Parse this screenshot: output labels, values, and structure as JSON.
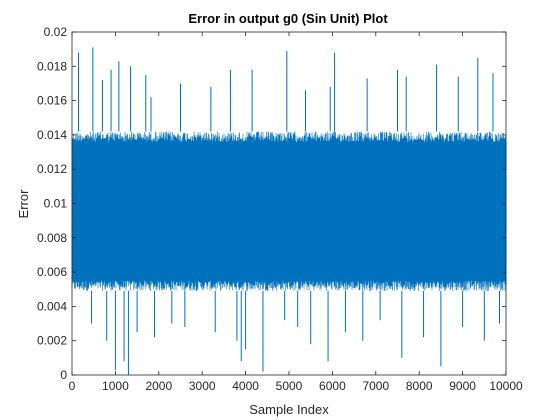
{
  "chart_data": {
    "type": "line",
    "title": "Error in output g0 (Sin Unit) Plot",
    "xlabel": "Sample Index",
    "ylabel": "Error",
    "xlim": [
      0,
      10000
    ],
    "ylim": [
      0,
      0.02
    ],
    "x_ticks": [
      0,
      1000,
      2000,
      3000,
      4000,
      5000,
      6000,
      7000,
      8000,
      9000,
      10000
    ],
    "x_tick_labels": [
      "0",
      "1000",
      "2000",
      "3000",
      "4000",
      "5000",
      "6000",
      "7000",
      "8000",
      "9000",
      "10000"
    ],
    "y_ticks": [
      0,
      0.002,
      0.004,
      0.006,
      0.008,
      0.01,
      0.012,
      0.014,
      0.016,
      0.018,
      0.02
    ],
    "y_tick_labels": [
      "0",
      "0.002",
      "0.004",
      "0.006",
      "0.008",
      "0.01",
      "0.012",
      "0.014",
      "0.016",
      "0.018",
      "0.02"
    ],
    "grid": false,
    "line_color": "#0072BD",
    "series": [
      {
        "band_upper": 0.0142,
        "band_lower": 0.0049,
        "upward_spikes": [
          {
            "x": 150,
            "y": 0.0188
          },
          {
            "x": 480,
            "y": 0.0191
          },
          {
            "x": 700,
            "y": 0.0172
          },
          {
            "x": 900,
            "y": 0.0178
          },
          {
            "x": 1080,
            "y": 0.0183
          },
          {
            "x": 1350,
            "y": 0.018
          },
          {
            "x": 1700,
            "y": 0.0175
          },
          {
            "x": 1820,
            "y": 0.0162
          },
          {
            "x": 2500,
            "y": 0.017
          },
          {
            "x": 3200,
            "y": 0.0168
          },
          {
            "x": 3650,
            "y": 0.0178
          },
          {
            "x": 4150,
            "y": 0.0178
          },
          {
            "x": 4950,
            "y": 0.0189
          },
          {
            "x": 5380,
            "y": 0.0166
          },
          {
            "x": 5950,
            "y": 0.0168
          },
          {
            "x": 6050,
            "y": 0.0188
          },
          {
            "x": 6800,
            "y": 0.0173
          },
          {
            "x": 7500,
            "y": 0.0178
          },
          {
            "x": 7700,
            "y": 0.0174
          },
          {
            "x": 8400,
            "y": 0.0181
          },
          {
            "x": 8900,
            "y": 0.0174
          },
          {
            "x": 9350,
            "y": 0.0185
          },
          {
            "x": 9700,
            "y": 0.0176
          }
        ],
        "downward_spikes": [
          {
            "x": 450,
            "y": 0.003
          },
          {
            "x": 800,
            "y": 0.002
          },
          {
            "x": 1000,
            "y": 0.0003
          },
          {
            "x": 1200,
            "y": 0.0008
          },
          {
            "x": 1300,
            "y": 0.0
          },
          {
            "x": 1500,
            "y": 0.0025
          },
          {
            "x": 1900,
            "y": 0.0022
          },
          {
            "x": 2300,
            "y": 0.003
          },
          {
            "x": 2600,
            "y": 0.0028
          },
          {
            "x": 3300,
            "y": 0.0025
          },
          {
            "x": 3800,
            "y": 0.002
          },
          {
            "x": 3900,
            "y": 0.0008
          },
          {
            "x": 4000,
            "y": 0.0015
          },
          {
            "x": 4400,
            "y": 0.0002
          },
          {
            "x": 4900,
            "y": 0.0032
          },
          {
            "x": 5200,
            "y": 0.0028
          },
          {
            "x": 5500,
            "y": 0.0018
          },
          {
            "x": 5900,
            "y": 0.0008
          },
          {
            "x": 6300,
            "y": 0.0025
          },
          {
            "x": 6700,
            "y": 0.002
          },
          {
            "x": 7100,
            "y": 0.0032
          },
          {
            "x": 7600,
            "y": 0.001
          },
          {
            "x": 8100,
            "y": 0.0022
          },
          {
            "x": 8500,
            "y": 0.0005
          },
          {
            "x": 9000,
            "y": 0.0028
          },
          {
            "x": 9500,
            "y": 0.002
          },
          {
            "x": 9850,
            "y": 0.003
          }
        ]
      }
    ]
  }
}
